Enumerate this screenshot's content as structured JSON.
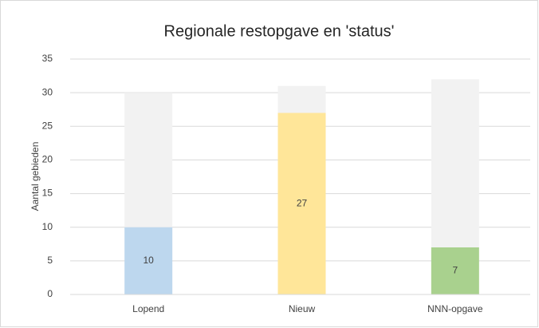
{
  "chart_data": {
    "type": "stacked_bar",
    "title": "Regionale restopgave en 'status'",
    "y_label": "Aantal gebieden",
    "categories": [
      "Lopend",
      "Nieuw",
      "NNN-opgave"
    ],
    "series": [
      {
        "colors": [
          "#bdd7ee",
          "#ffe699",
          "#a9d18e"
        ],
        "values": [
          10,
          27,
          7
        ],
        "show_labels": true
      },
      {
        "color": "#f2f2f2",
        "values": [
          20,
          4,
          25
        ],
        "show_labels": false
      }
    ],
    "ylim": [
      0,
      35
    ],
    "yticks": [
      0,
      5,
      10,
      15,
      20,
      25,
      30,
      35
    ],
    "grid": true
  }
}
